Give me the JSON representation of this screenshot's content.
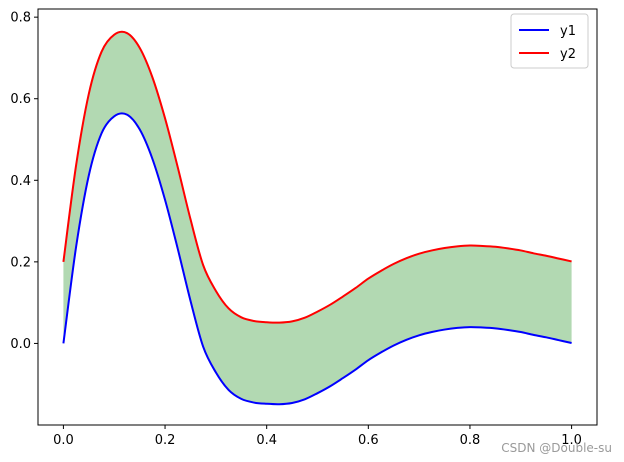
{
  "chart_data": {
    "type": "line",
    "title": "",
    "xlabel": "",
    "ylabel": "",
    "xlim": [
      -0.05,
      1.05
    ],
    "ylim": [
      -0.2,
      0.82
    ],
    "x_ticks": [
      0.0,
      0.2,
      0.4,
      0.6,
      0.8,
      1.0
    ],
    "x_tick_labels": [
      "0.0",
      "0.2",
      "0.4",
      "0.6",
      "0.8",
      "1.0"
    ],
    "y_ticks": [
      0.0,
      0.2,
      0.4,
      0.6,
      0.8
    ],
    "y_tick_labels": [
      "0.0",
      "0.2",
      "0.4",
      "0.6",
      "0.8"
    ],
    "grid": false,
    "legend_position": "top-right",
    "fill_between": {
      "between": [
        "y1",
        "y2"
      ],
      "color": "#008000",
      "alpha": 0.3
    },
    "series": [
      {
        "name": "y1",
        "color": "#0000ff",
        "x": [
          0.0,
          0.025,
          0.05,
          0.075,
          0.1,
          0.125,
          0.15,
          0.175,
          0.2,
          0.225,
          0.25,
          0.275,
          0.3,
          0.325,
          0.35,
          0.375,
          0.4,
          0.425,
          0.45,
          0.475,
          0.5,
          0.525,
          0.55,
          0.575,
          0.6,
          0.625,
          0.65,
          0.675,
          0.7,
          0.725,
          0.75,
          0.775,
          0.8,
          0.825,
          0.85,
          0.875,
          0.9,
          0.925,
          0.95,
          0.975,
          1.0
        ],
        "values": [
          0.0,
          0.237,
          0.412,
          0.515,
          0.557,
          0.561,
          0.525,
          0.453,
          0.352,
          0.232,
          0.105,
          -0.008,
          -0.071,
          -0.114,
          -0.136,
          -0.145,
          -0.148,
          -0.149,
          -0.146,
          -0.137,
          -0.122,
          -0.105,
          -0.085,
          -0.064,
          -0.041,
          -0.022,
          -0.005,
          0.009,
          0.02,
          0.028,
          0.034,
          0.038,
          0.04,
          0.039,
          0.037,
          0.033,
          0.028,
          0.021,
          0.015,
          0.008,
          0.001
        ]
      },
      {
        "name": "y2",
        "color": "#ff0000",
        "x": [
          0.0,
          0.025,
          0.05,
          0.075,
          0.1,
          0.125,
          0.15,
          0.175,
          0.2,
          0.225,
          0.25,
          0.275,
          0.3,
          0.325,
          0.35,
          0.375,
          0.4,
          0.425,
          0.45,
          0.475,
          0.5,
          0.525,
          0.55,
          0.575,
          0.6,
          0.625,
          0.65,
          0.675,
          0.7,
          0.725,
          0.75,
          0.775,
          0.8,
          0.825,
          0.85,
          0.875,
          0.9,
          0.925,
          0.95,
          0.975,
          1.0
        ],
        "values": [
          0.2,
          0.437,
          0.612,
          0.715,
          0.757,
          0.761,
          0.725,
          0.653,
          0.552,
          0.432,
          0.305,
          0.192,
          0.129,
          0.086,
          0.064,
          0.055,
          0.052,
          0.051,
          0.054,
          0.063,
          0.078,
          0.095,
          0.115,
          0.136,
          0.159,
          0.178,
          0.195,
          0.209,
          0.22,
          0.228,
          0.234,
          0.238,
          0.24,
          0.239,
          0.237,
          0.233,
          0.228,
          0.221,
          0.215,
          0.208,
          0.201
        ]
      }
    ]
  },
  "legend": {
    "items": [
      {
        "label": "y1",
        "color": "#0000ff"
      },
      {
        "label": "y2",
        "color": "#ff0000"
      }
    ]
  },
  "watermark": {
    "text": "CSDN @Double-su"
  }
}
